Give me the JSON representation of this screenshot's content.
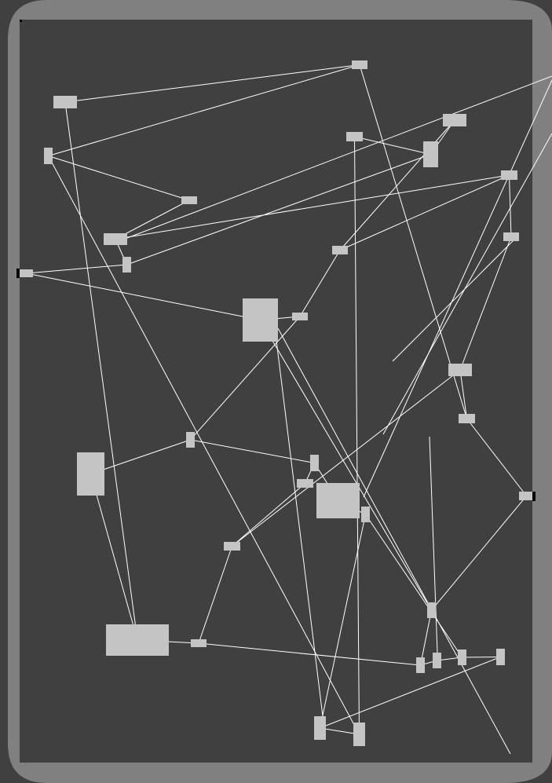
{
  "colors": {
    "outer": "#404040",
    "frame": "#808080",
    "canvas": "#404040",
    "node": "#c4c4c4",
    "edge": "#ffffff",
    "port": "#000000"
  },
  "diagram": {
    "nodes": [
      {
        "id": "n1"
      },
      {
        "id": "n2"
      },
      {
        "id": "n3"
      },
      {
        "id": "n4"
      },
      {
        "id": "n5"
      },
      {
        "id": "n6"
      },
      {
        "id": "n7"
      },
      {
        "id": "n8"
      },
      {
        "id": "n9"
      },
      {
        "id": "n10"
      },
      {
        "id": "n11"
      },
      {
        "id": "n12"
      },
      {
        "id": "n13"
      },
      {
        "id": "n14"
      },
      {
        "id": "n15"
      },
      {
        "id": "n16"
      },
      {
        "id": "n17"
      },
      {
        "id": "n18"
      },
      {
        "id": "n19"
      },
      {
        "id": "n20"
      },
      {
        "id": "n21"
      },
      {
        "id": "n22"
      },
      {
        "id": "n23"
      },
      {
        "id": "n24"
      },
      {
        "id": "n25"
      },
      {
        "id": "n26"
      },
      {
        "id": "n27"
      },
      {
        "id": "n28"
      },
      {
        "id": "n29"
      },
      {
        "id": "n30"
      },
      {
        "id": "n31"
      },
      {
        "id": "n32"
      },
      {
        "id": "n33"
      },
      {
        "id": "n34"
      }
    ],
    "edges": [
      [
        "n1",
        "n2"
      ],
      [
        "n2",
        "n3"
      ],
      [
        "n3",
        "n4"
      ],
      [
        "n4",
        "n5"
      ],
      [
        "n5",
        "n6"
      ],
      [
        "n6",
        "n7"
      ],
      [
        "n7",
        "n8"
      ],
      [
        "n8",
        "n9"
      ],
      [
        "n9",
        "n10"
      ],
      [
        "n10",
        "n11"
      ],
      [
        "n11",
        "n12"
      ],
      [
        "n12",
        "n13"
      ],
      [
        "n13",
        "n14"
      ],
      [
        "n14",
        "n15"
      ],
      [
        "n15",
        "n16"
      ],
      [
        "n16",
        "n17"
      ],
      [
        "n17",
        "n18"
      ],
      [
        "n18",
        "n19"
      ],
      [
        "n19",
        "n20"
      ],
      [
        "n20",
        "n21"
      ],
      [
        "n21",
        "n22"
      ],
      [
        "n22",
        "n23"
      ],
      [
        "n23",
        "n24"
      ],
      [
        "n24",
        "n25"
      ],
      [
        "n25",
        "n26"
      ],
      [
        "n26",
        "n27"
      ],
      [
        "n27",
        "n28"
      ],
      [
        "n28",
        "n29"
      ],
      [
        "n29",
        "n30"
      ],
      [
        "n30",
        "n31"
      ],
      [
        "n31",
        "n32"
      ],
      [
        "n32",
        "n33"
      ],
      [
        "n33",
        "n34"
      ],
      [
        "n1",
        "n12"
      ],
      [
        "n3",
        "n20"
      ],
      [
        "n5",
        "n25"
      ],
      [
        "n8",
        "n30"
      ],
      [
        "n10",
        "n16"
      ],
      [
        "n14",
        "n27"
      ],
      [
        "n18",
        "n33"
      ],
      [
        "n22",
        "n6"
      ],
      [
        "n24",
        "n9"
      ],
      [
        "n28",
        "n2"
      ],
      [
        "n31",
        "n13"
      ],
      [
        "n34",
        "n19"
      ]
    ]
  }
}
